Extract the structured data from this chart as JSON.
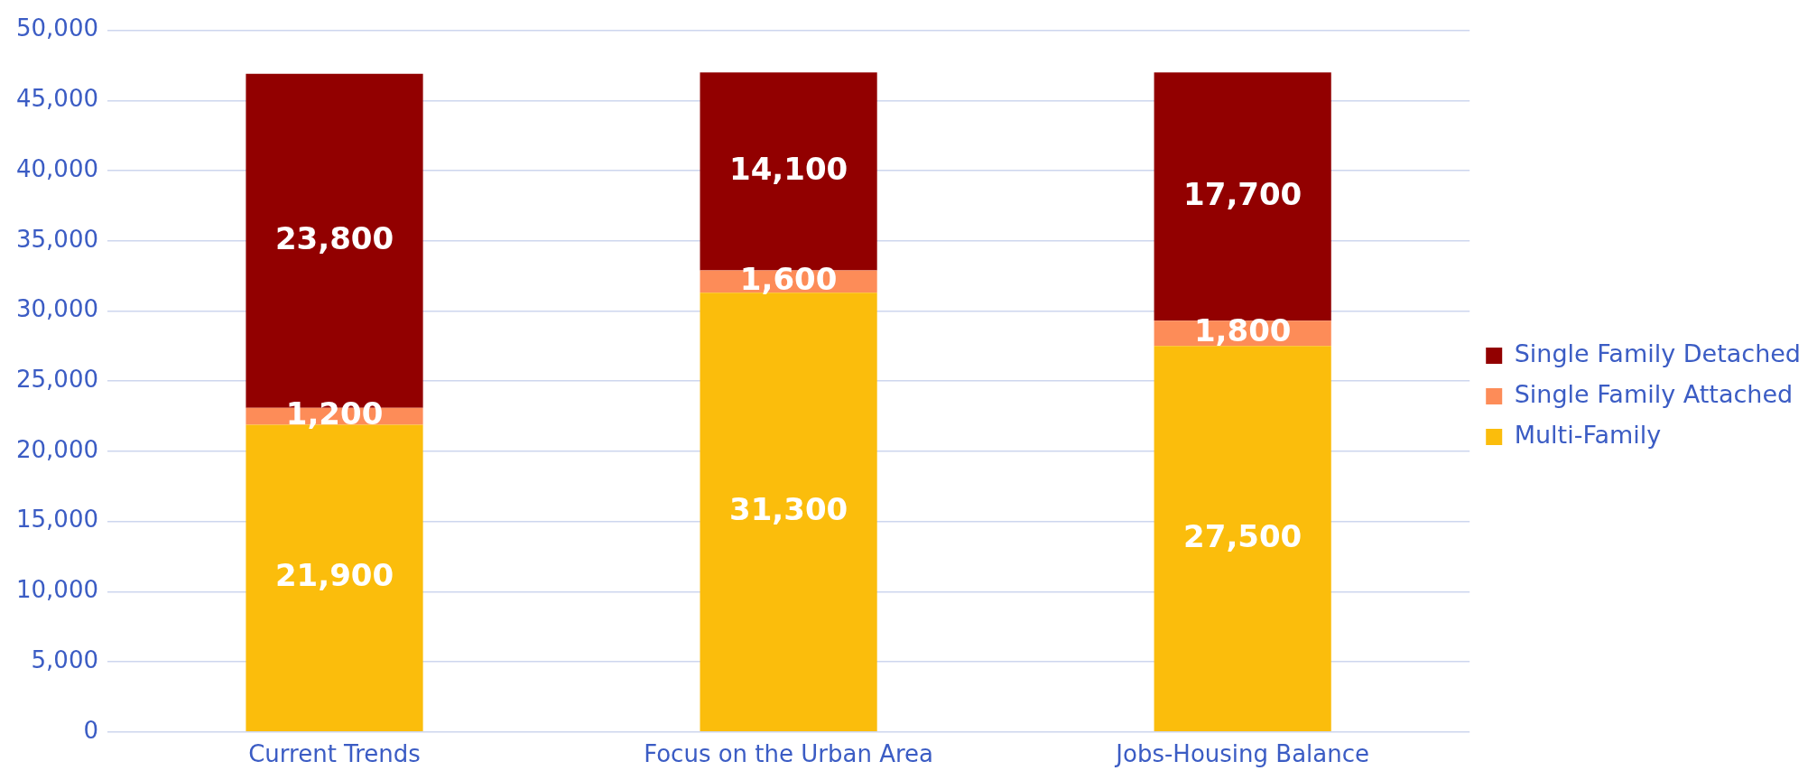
{
  "chart_data": {
    "type": "bar",
    "stacked": true,
    "categories": [
      "Current Trends",
      "Focus on the Urban Area",
      "Jobs-Housing Balance"
    ],
    "series": [
      {
        "name": "Multi-Family",
        "color": "#fbbd0c",
        "values": [
          21900,
          31300,
          27500
        ],
        "value_labels": [
          "21,900",
          "31,300",
          "27,500"
        ]
      },
      {
        "name": "Single Family Attached",
        "color": "#fd8c58",
        "values": [
          1200,
          1600,
          1800
        ],
        "value_labels": [
          "1,200",
          "1,600",
          "1,800"
        ]
      },
      {
        "name": "Single Family Detached",
        "color": "#920000",
        "values": [
          23800,
          14100,
          17700
        ],
        "value_labels": [
          "23,800",
          "14,100",
          "17,700"
        ]
      }
    ],
    "ylim": [
      0,
      50000
    ],
    "yticks": [
      {
        "value": 0,
        "label": "0"
      },
      {
        "value": 5000,
        "label": "5,000"
      },
      {
        "value": 10000,
        "label": "10,000"
      },
      {
        "value": 15000,
        "label": "15,000"
      },
      {
        "value": 20000,
        "label": "20,000"
      },
      {
        "value": 25000,
        "label": "25,000"
      },
      {
        "value": 30000,
        "label": "30,000"
      },
      {
        "value": 35000,
        "label": "35,000"
      },
      {
        "value": 40000,
        "label": "40,000"
      },
      {
        "value": 45000,
        "label": "45,000"
      },
      {
        "value": 50000,
        "label": "50,000"
      }
    ],
    "grid": "y",
    "legend": "right"
  }
}
